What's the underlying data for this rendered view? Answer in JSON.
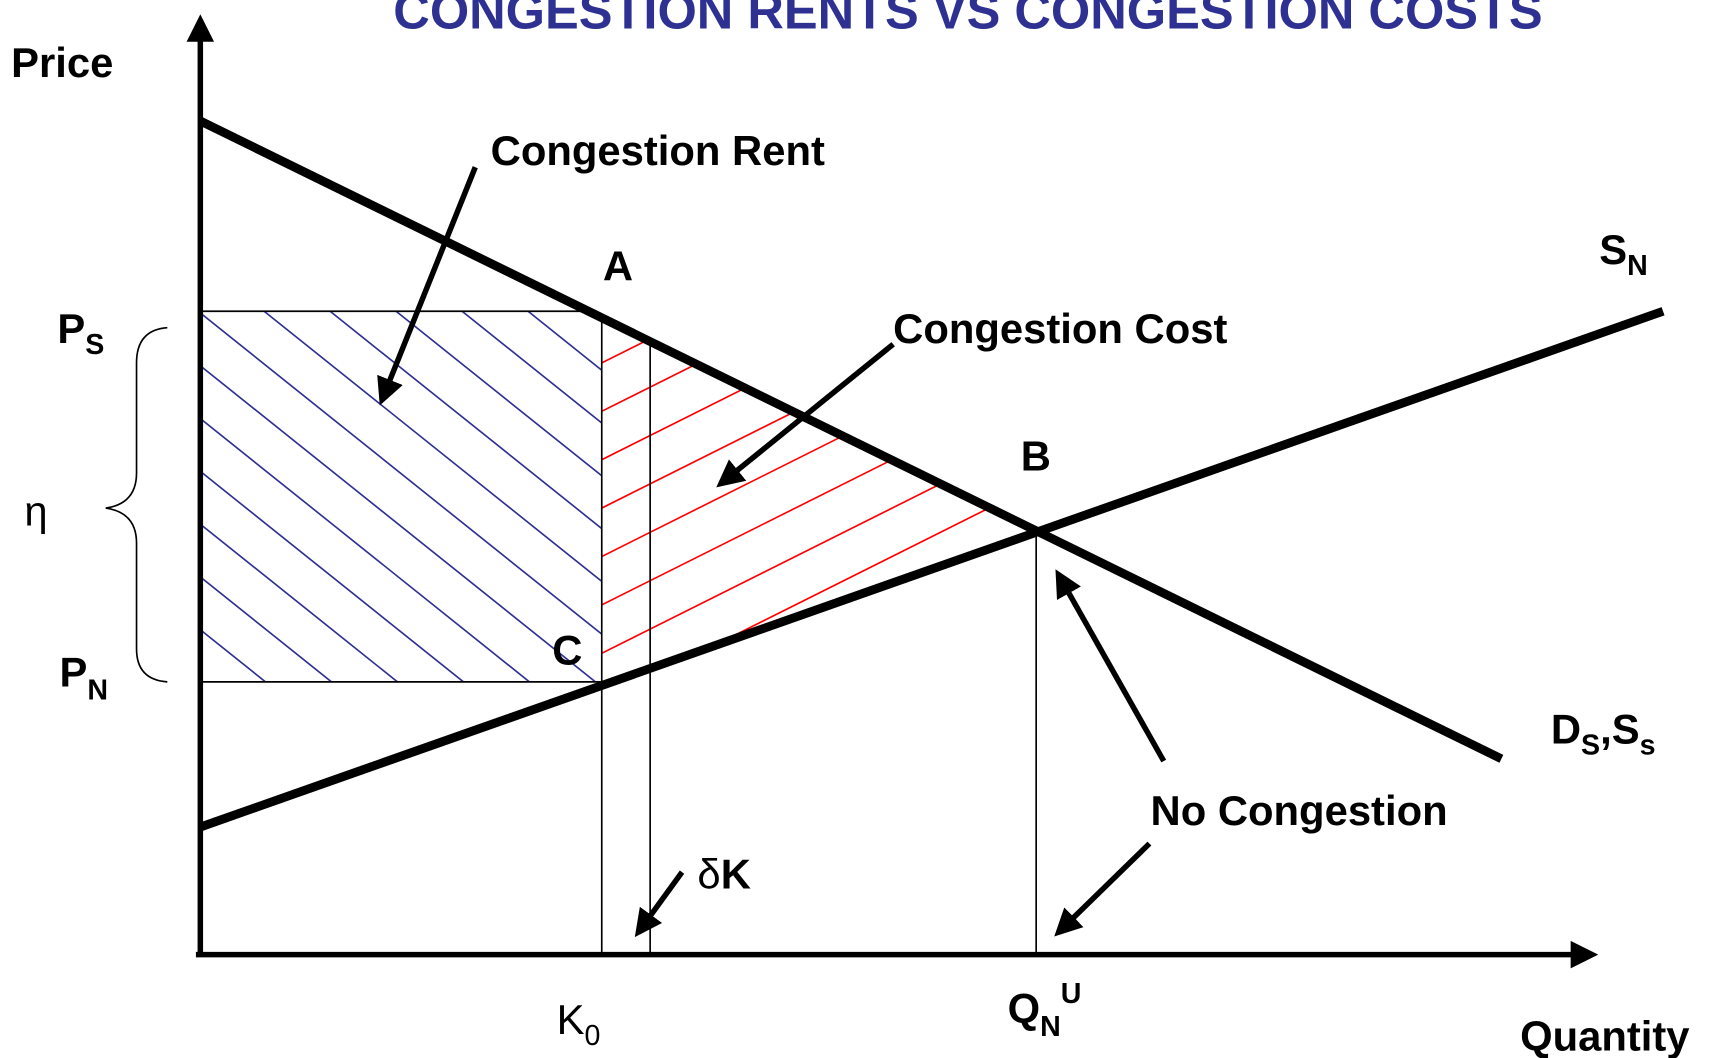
{
  "title": "CONGESTION RENTS VS CONGESTION COSTS",
  "axes": {
    "y_label": "Price",
    "x_label": "Quantity"
  },
  "annotations": {
    "congestion_rent": "Congestion Rent",
    "congestion_cost": "Congestion Cost",
    "no_congestion": "No Congestion"
  },
  "points": {
    "a": "A",
    "b": "B",
    "c": "C"
  },
  "price_labels": {
    "ps": {
      "main": "P",
      "sub": "S"
    },
    "pn": {
      "main": "P",
      "sub": "N"
    },
    "eta": "η"
  },
  "curve_labels": {
    "supply": {
      "main": "S",
      "sub": "N"
    },
    "demand": {
      "main1": "D",
      "sub1": "S",
      "sep": ",",
      "main2": "S",
      "sub2": "s"
    }
  },
  "quantity_labels": {
    "k0": {
      "main": "K",
      "sub": "0"
    },
    "qnu": {
      "main": "Q",
      "sub": "N",
      "sup": "U"
    },
    "dk": {
      "delta": "δ",
      "main": "K"
    }
  }
}
